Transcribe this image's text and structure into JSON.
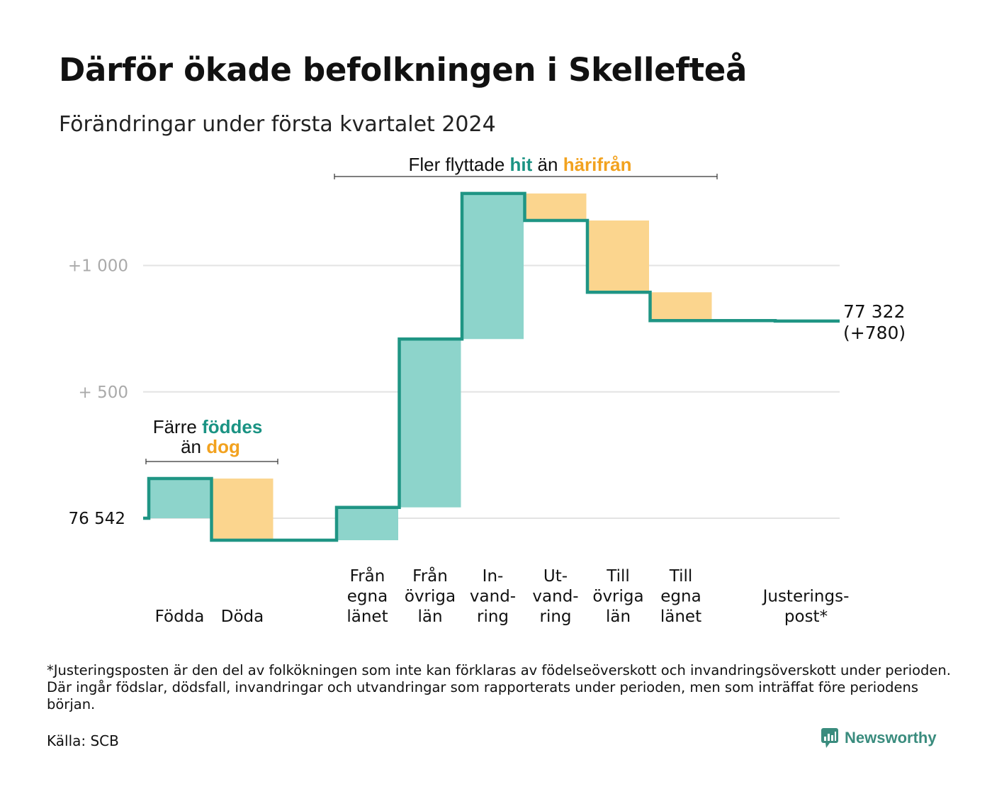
{
  "title": "Därför ökade befolkningen i Skellefteå",
  "subtitle": "Förändringar under första kvartalet 2024",
  "colors": {
    "increase": "#8dd4cb",
    "decrease": "#fbd58e",
    "line": "#1f9584",
    "increase_text": "#1a9383",
    "decrease_text": "#f2a21f",
    "grid": "#e3e3e3"
  },
  "annotations": {
    "births": {
      "line1": "Färre",
      "hl1": "föddes",
      "line2": "än",
      "hl2": "dog"
    },
    "migration": {
      "text1": "Fler flyttade",
      "hl1": "hit",
      "text2": "än",
      "hl2": "härifrån"
    }
  },
  "chart_data": {
    "type": "waterfall",
    "title": "Därför ökade befolkningen i Skellefteå",
    "subtitle": "Förändringar under första kvartalet 2024",
    "baseline": 76542,
    "baseline_label": "76  542",
    "y_ticks": [
      {
        "value": 1000,
        "label": "+1   000"
      },
      {
        "value": 500,
        "label": "+  500"
      }
    ],
    "ylim": [
      -200,
      1350
    ],
    "grid": true,
    "steps": [
      {
        "category": "Födda",
        "label_lines": [
          "Födda"
        ],
        "change": 157,
        "kind": "increase",
        "group": 0
      },
      {
        "category": "Döda",
        "label_lines": [
          "Döda"
        ],
        "change": -244,
        "kind": "decrease",
        "group": 0
      },
      {
        "category": "Från egna länet",
        "label_lines": [
          "Från",
          "egna",
          "länet"
        ],
        "change": 130,
        "kind": "increase",
        "group": 1
      },
      {
        "category": "Från övriga län",
        "label_lines": [
          "Från",
          "övriga",
          "län"
        ],
        "change": 666,
        "kind": "increase",
        "group": 1
      },
      {
        "category": "Invandring",
        "label_lines": [
          "In-",
          "vand-",
          "ring"
        ],
        "change": 576,
        "kind": "increase",
        "group": 1
      },
      {
        "category": "Utvandring",
        "label_lines": [
          "Ut-",
          "vand-",
          "ring"
        ],
        "change": -107,
        "kind": "decrease",
        "group": 1
      },
      {
        "category": "Till övriga län",
        "label_lines": [
          "Till",
          "övriga",
          "län"
        ],
        "change": -284,
        "kind": "decrease",
        "group": 1
      },
      {
        "category": "Till egna länet",
        "label_lines": [
          "Till",
          "egna",
          "länet"
        ],
        "change": -112,
        "kind": "decrease",
        "group": 1
      },
      {
        "category": "Justeringspost*",
        "label_lines": [
          "Justerings-",
          "post*"
        ],
        "change": -2,
        "kind": "adjustment",
        "group": 2
      }
    ],
    "end_value_label": "77 322",
    "end_change_label": "(+780)"
  },
  "footnote": "*Justeringsposten är den del av folkökningen som inte kan förklaras av födelseöverskott och invandringsöverskott under perioden. Där ingår födslar, dödsfall, invandringar och utvandringar som rapporterats under perioden, men som inträffat före periodens början.",
  "source": "Källa: SCB",
  "brand": {
    "name": "Newsworthy",
    "icon": "bar-chart-logo-icon"
  }
}
